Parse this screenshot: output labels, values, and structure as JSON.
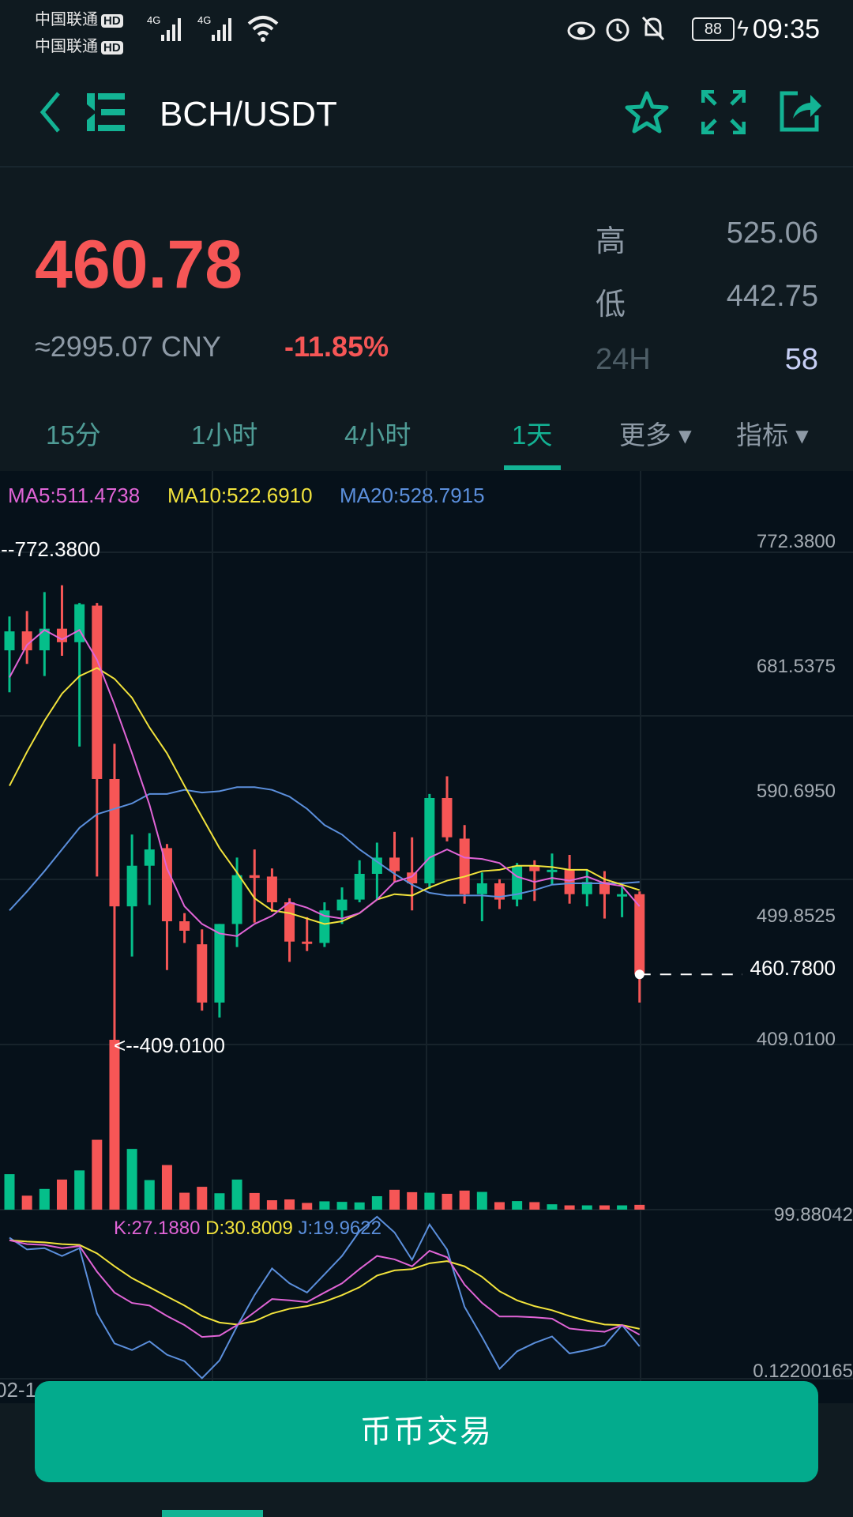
{
  "status_bar": {
    "carrier1": "中国联通",
    "carrier2": "中国联通",
    "hd": "HD",
    "net1": "4G",
    "net2": "4G",
    "battery": "88",
    "time": "09:35"
  },
  "header": {
    "title": "BCH/USDT"
  },
  "ticker": {
    "price": "460.78",
    "cny": "≈2995.07 CNY",
    "change": "-11.85%",
    "high_label": "高",
    "high": "525.06",
    "low_label": "低",
    "low": "442.75",
    "vol_label": "24H",
    "vol": "58"
  },
  "tabs": [
    {
      "label": "15分"
    },
    {
      "label": "1小时"
    },
    {
      "label": "4小时"
    },
    {
      "label": "1天"
    },
    {
      "label": "更多 ▾"
    },
    {
      "label": "指标 ▾"
    }
  ],
  "active_tab": "1天",
  "legend": {
    "ma5": "MA5:511.4738",
    "ma10": "MA10:522.6910",
    "ma20": "MA20:528.7915",
    "k": "K:27.1880",
    "d": "D:30.8009",
    "j": "J:19.9622"
  },
  "axis": {
    "labels": [
      "772.3800",
      "681.5375",
      "590.6950",
      "499.8525",
      "409.0100"
    ],
    "current": "460.7800",
    "vol_label": "99.88042",
    "kdj_min": "0.12200165",
    "max_marker": "<--772.3800",
    "min_marker": "<--409.0100",
    "date": "02-1"
  },
  "trade_button": "币币交易",
  "colors": {
    "up": "#05bf8a",
    "down": "#f65656",
    "accent": "#13b394",
    "ma5": "#e064d6",
    "ma10": "#f2e33c",
    "ma20": "#5b8fdc"
  },
  "chart_data": {
    "type": "candlestick",
    "price_range": [
      409.01,
      772.38
    ],
    "ohlc": [
      [
        700,
        725,
        669,
        714
      ],
      [
        714,
        729,
        690,
        700
      ],
      [
        700,
        743,
        681,
        716
      ],
      [
        716,
        748,
        696,
        706
      ],
      [
        706,
        735,
        629,
        734
      ],
      [
        733,
        735,
        533,
        605
      ],
      [
        605,
        631,
        409.01,
        511
      ],
      [
        511,
        564,
        474,
        541
      ],
      [
        541,
        565,
        512,
        553
      ],
      [
        554,
        557,
        464,
        500
      ],
      [
        500,
        506,
        484,
        493
      ],
      [
        483,
        494,
        434,
        440
      ],
      [
        440,
        498,
        429,
        498
      ],
      [
        498,
        547,
        481,
        534
      ],
      [
        534,
        553,
        499,
        532
      ],
      [
        533,
        539,
        507,
        514
      ],
      [
        514,
        517,
        470,
        485
      ],
      [
        485,
        503,
        478,
        484
      ],
      [
        484,
        514,
        481,
        508
      ],
      [
        508,
        525,
        498,
        516
      ],
      [
        516,
        545,
        514,
        535
      ],
      [
        535,
        558,
        516,
        547
      ],
      [
        547,
        566,
        529,
        537
      ],
      [
        536,
        562,
        508,
        528
      ],
      [
        528,
        594,
        524,
        591
      ],
      [
        591,
        607,
        559,
        562
      ],
      [
        561,
        571,
        513,
        520
      ],
      [
        520,
        536,
        500,
        528
      ],
      [
        528,
        531,
        509,
        516
      ],
      [
        516,
        543,
        511,
        541
      ],
      [
        541,
        545,
        515,
        537
      ],
      [
        537,
        550,
        527,
        538
      ],
      [
        538,
        549,
        513,
        520
      ],
      [
        520,
        538,
        511,
        529
      ],
      [
        529,
        537,
        502,
        520
      ],
      [
        519,
        527,
        503,
        520
      ],
      [
        520,
        522,
        440,
        460.78
      ]
    ],
    "ma5": [
      680,
      704,
      715,
      708,
      715,
      693,
      660,
      624,
      586,
      539,
      511,
      498,
      491,
      489,
      498,
      504,
      514,
      510,
      504,
      502,
      506,
      516,
      529,
      533,
      547,
      553,
      547,
      546,
      543,
      533,
      529,
      532,
      530,
      533,
      528,
      526,
      511
    ],
    "ma10": [
      600,
      625,
      648,
      668,
      681,
      687,
      679,
      665,
      643,
      624,
      600,
      577,
      554,
      536,
      517,
      508,
      506,
      502,
      498,
      500,
      506,
      516,
      520,
      519,
      525,
      530,
      533,
      537,
      538,
      541,
      541,
      540,
      538,
      538,
      531,
      527,
      523
    ],
    "ma20": [
      508,
      522,
      537,
      553,
      569,
      579,
      583,
      587,
      594,
      594,
      597,
      595,
      596,
      599,
      599,
      597,
      592,
      583,
      571,
      564,
      553,
      544,
      535,
      527,
      521,
      519,
      519,
      519,
      518,
      520,
      523,
      527,
      528,
      528,
      528,
      528,
      529
    ],
    "volume": [
      132,
      52,
      77,
      112,
      146,
      260,
      632,
      226,
      110,
      166,
      63,
      85,
      61,
      112,
      62,
      35,
      38,
      25,
      31,
      29,
      27,
      50,
      74,
      65,
      63,
      59,
      71,
      66,
      28,
      32,
      28,
      20,
      16,
      16,
      16,
      16,
      18
    ],
    "volume_up": [
      1,
      0,
      1,
      0,
      1,
      0,
      0,
      1,
      1,
      0,
      0,
      0,
      1,
      1,
      0,
      0,
      0,
      0,
      1,
      1,
      1,
      1,
      0,
      0,
      1,
      0,
      0,
      1,
      0,
      1,
      0,
      1,
      0,
      1,
      0,
      1,
      0
    ],
    "k": [
      85.5,
      83.1,
      82.6,
      80.6,
      81.9,
      66.1,
      53.2,
      46.8,
      45.2,
      38.7,
      33.1,
      25.8,
      26.6,
      33.1,
      41.1,
      49.2,
      48.4,
      47.3,
      53.2,
      58.9,
      67.7,
      75.8,
      73.7,
      69.4,
      79.0,
      75.0,
      58.1,
      46.8,
      38.4,
      38.4,
      37.9,
      37.1,
      31.0,
      29.8,
      29.0,
      33.1,
      27.2
    ],
    "d": [
      85.5,
      84.7,
      84.2,
      83.1,
      82.6,
      77.4,
      69.4,
      62.1,
      56.5,
      50.8,
      45.2,
      38.7,
      34.7,
      33.5,
      35.5,
      40.3,
      43.2,
      44.8,
      47.6,
      51.6,
      56.5,
      63.7,
      66.9,
      67.7,
      71.3,
      72.6,
      69.4,
      62.9,
      54.0,
      48.4,
      44.8,
      42.3,
      38.7,
      35.8,
      33.5,
      33.1,
      30.8
    ],
    "j": [
      87.1,
      79.8,
      80.6,
      75.8,
      80.6,
      40.3,
      21.8,
      17.7,
      23.1,
      14.8,
      10.8,
      0.3,
      11.3,
      32.3,
      51.6,
      68.1,
      58.9,
      53.2,
      64.5,
      75.8,
      91.1,
      100,
      90.3,
      73.4,
      95.2,
      79.8,
      44.4,
      25.8,
      6.1,
      16.9,
      22.1,
      26.1,
      15.6,
      17.7,
      20.6,
      33.1,
      20.0
    ]
  }
}
